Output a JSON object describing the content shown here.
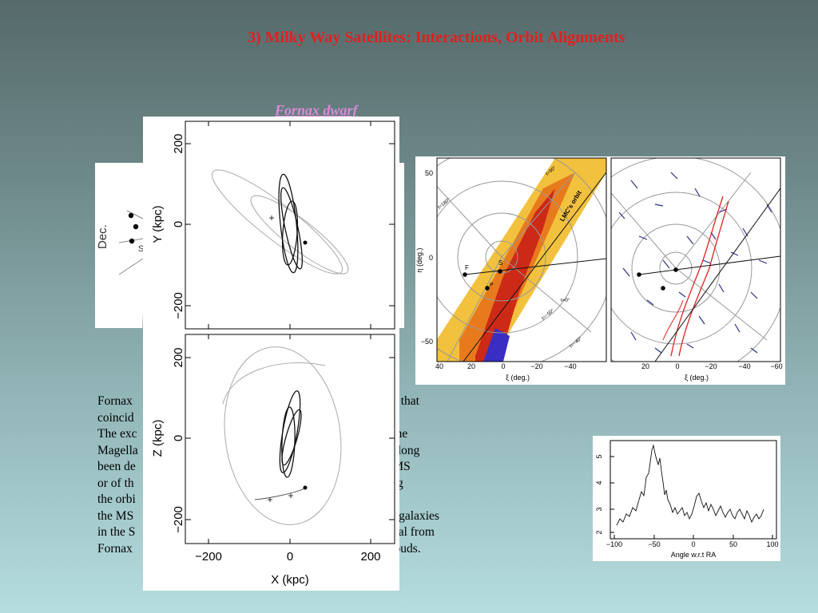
{
  "title": "3) Milky Way Satellites: Interactions, Orbit Alignments",
  "subtitle": "Fornax dwarf",
  "body_lines": [
    "Fornax                                                                    ago, a time that",
    "coincid                                                                   s in Fornax.",
    "The exc                                                                   region of the",
    "Magella                                                                   origin has long",
    "been de                                                                   either the MS",
    "or of th                                                                  d to lie along",
    "the orbi                                                                  om those in",
    "the MS                                                                    w those of galaxies",
    "in the S                                                                  pped material from",
    "Fornax                                                                    gellanic clouds."
  ],
  "figures": {
    "sky_inset": {
      "axis_label": "Dec.",
      "point_label": "S"
    },
    "orbit_xy": {
      "ylabel": "Y (kpc)",
      "yticks": [
        "200",
        "0",
        "−200"
      ]
    },
    "orbit_xz": {
      "ylabel": "Z (kpc)",
      "xlabel": "X (kpc)",
      "yticks": [
        "200",
        "0",
        "−200"
      ],
      "xticks": [
        "−200",
        "0",
        "200"
      ]
    },
    "stream_map": {
      "ylabel": "η (deg.)",
      "left_xlabel": "ξ (deg.)",
      "right_xlabel": "ξ (deg.)",
      "left_xticks": [
        "40",
        "20",
        "0",
        "−20",
        "−40"
      ],
      "right_xticks": [
        "20",
        "0",
        "−20",
        "−40",
        "−60"
      ],
      "yticks": [
        "50",
        "0",
        "−50"
      ],
      "orbit_label": "LMC's orbit",
      "point_labels": [
        "F",
        "S",
        "P"
      ],
      "contour_labels": [
        "ℓ=90°",
        "ℓ=180°",
        "ℓ=0°",
        "ℓ=−50°",
        "ℓ=−40°"
      ]
    },
    "profile": {
      "xlabel": "Angle w.r.t RA",
      "xticks": [
        "−100",
        "−50",
        "0",
        "50",
        "100"
      ],
      "yticks": [
        "5",
        "4",
        "3",
        "2"
      ]
    }
  }
}
